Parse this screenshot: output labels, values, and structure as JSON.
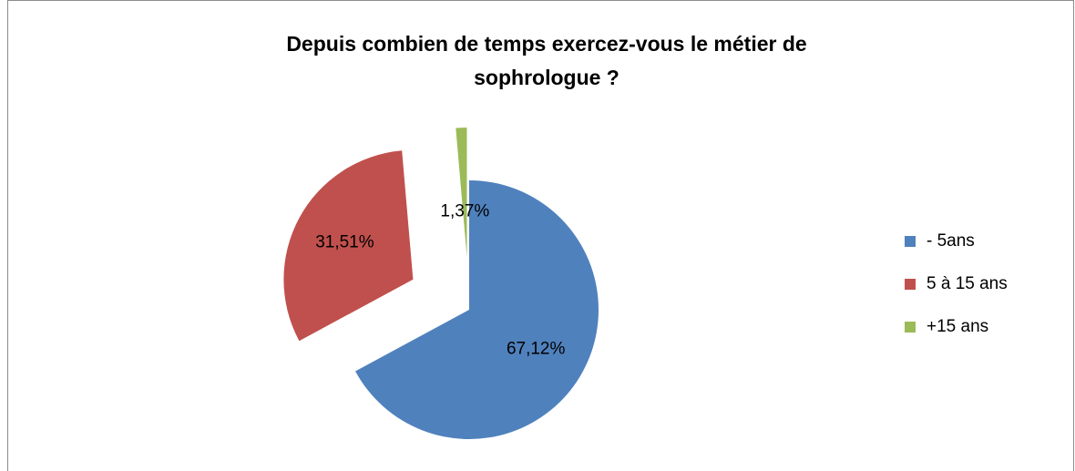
{
  "chart_data": {
    "type": "pie",
    "title": "Depuis combien de temps exercez-vous le métier de sophrologue ?",
    "categories": [
      "- 5ans",
      "5 à 15 ans",
      "+15 ans"
    ],
    "values": [
      67.12,
      31.51,
      1.37
    ],
    "value_labels": [
      "67,12%",
      "31,51%",
      "1,37%"
    ],
    "colors": [
      "#4f81bd",
      "#c0504d",
      "#9bbb59"
    ],
    "legend": "right"
  }
}
